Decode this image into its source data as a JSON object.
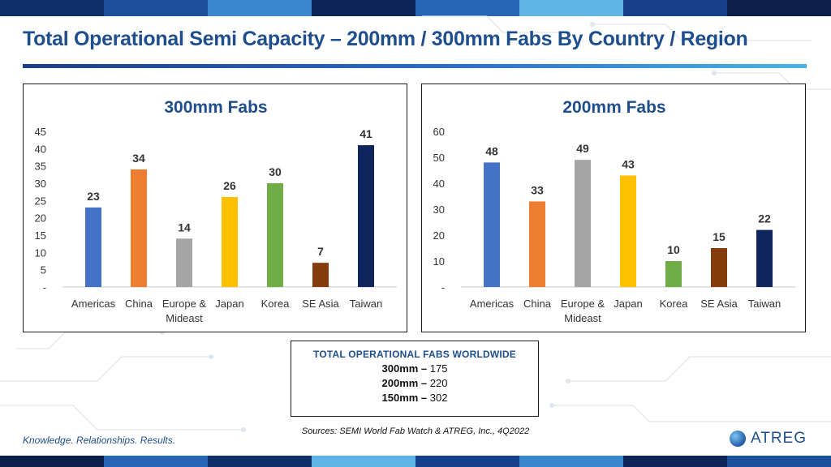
{
  "slide": {
    "title": "Total Operational Semi Capacity – 200mm / 300mm Fabs By Country / Region",
    "tagline": "Knowledge. Relationships. Results.",
    "sources": "Sources: SEMI World Fab Watch & ATREG, Inc., 4Q2022",
    "logo_text": "ATREG",
    "logo_icon": "globe-icon",
    "accent_color": "#1f4e8c"
  },
  "totals": {
    "heading": "TOTAL OPERATIONAL FABS WORLDWIDE",
    "rows": [
      {
        "label": "300mm –",
        "value": "175"
      },
      {
        "label": "200mm –",
        "value": "220"
      },
      {
        "label": "150mm –",
        "value": "302"
      }
    ]
  },
  "chart_data": [
    {
      "type": "bar",
      "title": "300mm Fabs",
      "categories": [
        "Americas",
        "China",
        "Europe & Mideast",
        "Japan",
        "Korea",
        "SE Asia",
        "Taiwan"
      ],
      "values": [
        23,
        34,
        14,
        26,
        30,
        7,
        41
      ],
      "colors": [
        "#4472c4",
        "#ed7d31",
        "#a5a5a5",
        "#ffc000",
        "#70ad47",
        "#843c0c",
        "#10255e"
      ],
      "ylim": [
        0,
        45
      ],
      "yticks": [
        0,
        5,
        10,
        15,
        20,
        25,
        30,
        35,
        40,
        45
      ],
      "ytick_labels": [
        "-",
        "5",
        "10",
        "15",
        "20",
        "25",
        "30",
        "35",
        "40",
        "45"
      ],
      "grid": false,
      "xlabel": "",
      "ylabel": ""
    },
    {
      "type": "bar",
      "title": "200mm Fabs",
      "categories": [
        "Americas",
        "China",
        "Europe & Mideast",
        "Japan",
        "Korea",
        "SE Asia",
        "Taiwan"
      ],
      "values": [
        48,
        33,
        49,
        43,
        10,
        15,
        22
      ],
      "colors": [
        "#4472c4",
        "#ed7d31",
        "#a5a5a5",
        "#ffc000",
        "#70ad47",
        "#843c0c",
        "#10255e"
      ],
      "ylim": [
        0,
        60
      ],
      "yticks": [
        0,
        10,
        20,
        30,
        40,
        50,
        60
      ],
      "ytick_labels": [
        "-",
        "10",
        "20",
        "30",
        "40",
        "50",
        "60"
      ],
      "grid": false,
      "xlabel": "",
      "ylabel": ""
    }
  ]
}
